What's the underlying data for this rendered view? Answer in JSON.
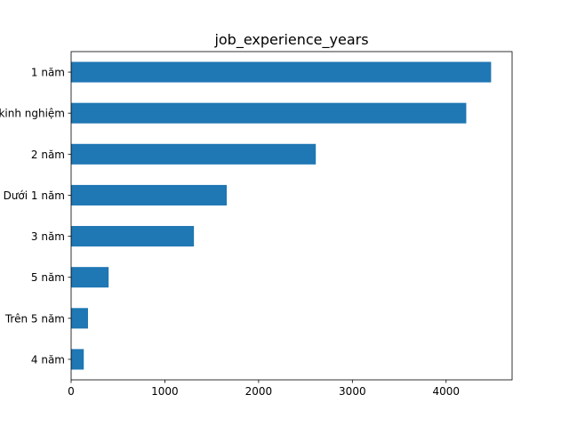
{
  "chart_data": {
    "type": "bar",
    "orientation": "horizontal",
    "title": "job_experience_years",
    "xlabel": "",
    "ylabel": "",
    "categories": [
      "1 năm",
      "Không yêu cầu kinh nghiệm",
      "2 năm",
      "Dưới 1 năm",
      "3 năm",
      "5 năm",
      "Trên 5 năm",
      "4 năm"
    ],
    "values": [
      4480,
      4215,
      2610,
      1660,
      1310,
      400,
      180,
      135
    ],
    "xlim": [
      0,
      4704
    ],
    "xticks": [
      0,
      1000,
      2000,
      3000,
      4000
    ],
    "bar_color": "#1f77b4",
    "grid": false,
    "legend": "none"
  }
}
